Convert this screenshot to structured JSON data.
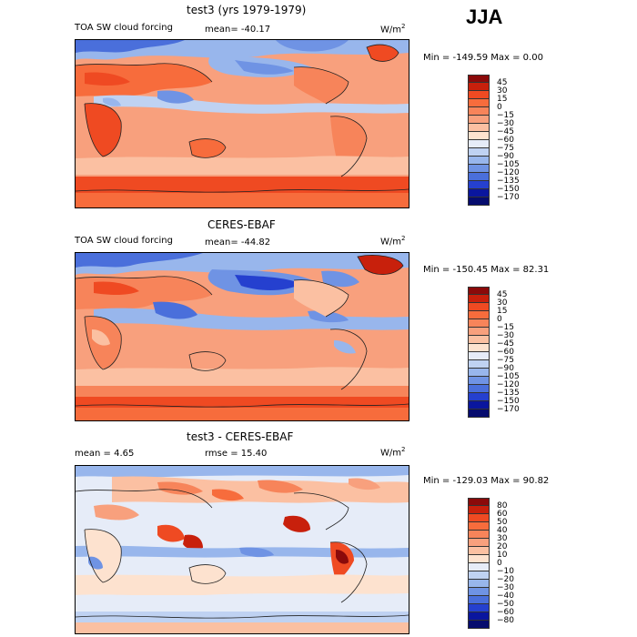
{
  "season": "JJA",
  "units_text": "W/m",
  "units_sup": "2",
  "panels": [
    {
      "title": "test3 (yrs 1979-1979)",
      "left_label": "TOA SW cloud forcing",
      "mid_label": "mean= -40.17",
      "minmax": "Min = -149.59 Max =    0.00",
      "levels": [
        "45",
        "30",
        "15",
        "0",
        "−15",
        "−30",
        "−45",
        "−60",
        "−75",
        "−90",
        "−105",
        "−120",
        "−135",
        "−150",
        "−170"
      ],
      "colors": [
        "#8b0a0a",
        "#c8200c",
        "#ef4a22",
        "#f76c3c",
        "#f7845a",
        "#f8a07d",
        "#fbc0a2",
        "#fde2cf",
        "#e6ecf8",
        "#bfd2f2",
        "#98b6ec",
        "#6f93e4",
        "#4a6fdb",
        "#2540cf",
        "#0a169e",
        "#060c6e"
      ]
    },
    {
      "title": "CERES-EBAF",
      "left_label": "TOA SW cloud forcing",
      "mid_label": "mean= -44.82",
      "minmax": "Min = -150.45 Max =  82.31",
      "levels": [
        "45",
        "30",
        "15",
        "0",
        "−15",
        "−30",
        "−45",
        "−60",
        "−75",
        "−90",
        "−105",
        "−120",
        "−135",
        "−150",
        "−170"
      ],
      "colors": [
        "#8b0a0a",
        "#c8200c",
        "#ef4a22",
        "#f76c3c",
        "#f7845a",
        "#f8a07d",
        "#fbc0a2",
        "#fde2cf",
        "#e6ecf8",
        "#bfd2f2",
        "#98b6ec",
        "#6f93e4",
        "#4a6fdb",
        "#2540cf",
        "#0a169e",
        "#060c6e"
      ]
    },
    {
      "title": "test3 - CERES-EBAF",
      "left_label": "mean =    4.65",
      "mid_label": "rmse =   15.40",
      "minmax": "Min = -129.03 Max =  90.82",
      "levels": [
        "80",
        "60",
        "50",
        "40",
        "30",
        "20",
        "10",
        "0",
        "−10",
        "−20",
        "−30",
        "−40",
        "−50",
        "−60",
        "−80"
      ],
      "colors": [
        "#8b0a0a",
        "#c8200c",
        "#ef4a22",
        "#f76c3c",
        "#f7845a",
        "#f8a07d",
        "#fbc0a2",
        "#fde2cf",
        "#e6ecf8",
        "#bfd2f2",
        "#98b6ec",
        "#6f93e4",
        "#4a6fdb",
        "#2540cf",
        "#0a169e",
        "#060c6e"
      ]
    }
  ]
}
